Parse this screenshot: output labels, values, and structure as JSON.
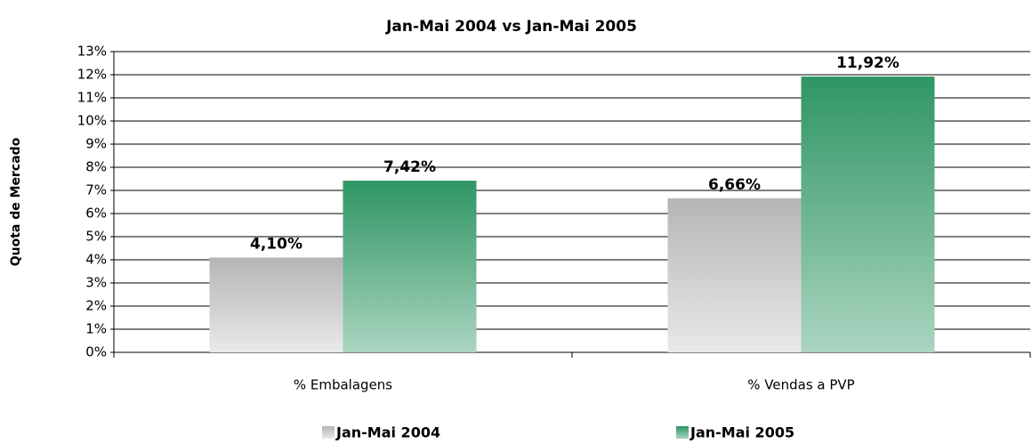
{
  "chart_data": {
    "type": "bar",
    "title": "Jan-Mai 2004  vs  Jan-Mai 2005",
    "y_label": "Quota de Mercado",
    "categories": [
      "% Embalagens",
      "% Vendas a PVP"
    ],
    "series": [
      {
        "name": "Jan-Mai 2004",
        "color": "#b5b5b5",
        "values": [
          4.1,
          6.66
        ],
        "value_labels": [
          "4,10%",
          "6,66%"
        ]
      },
      {
        "name": "Jan-Mai 2005",
        "color": "#2e9563",
        "values": [
          7.42,
          11.92
        ],
        "value_labels": [
          "7,42%",
          "11,92%"
        ]
      }
    ],
    "ylim": [
      0,
      13
    ],
    "yticks": [
      {
        "value": 0,
        "label": "0%"
      },
      {
        "value": 1,
        "label": "1%"
      },
      {
        "value": 2,
        "label": "2%"
      },
      {
        "value": 3,
        "label": "3%"
      },
      {
        "value": 4,
        "label": "4%"
      },
      {
        "value": 5,
        "label": "5%"
      },
      {
        "value": 6,
        "label": "6%"
      },
      {
        "value": 7,
        "label": "7%"
      },
      {
        "value": 8,
        "label": "8%"
      },
      {
        "value": 9,
        "label": "9%"
      },
      {
        "value": 10,
        "label": "10%"
      },
      {
        "value": 11,
        "label": "11%"
      },
      {
        "value": 12,
        "label": "12%"
      },
      {
        "value": 13,
        "label": "13%"
      }
    ],
    "grid": true
  }
}
